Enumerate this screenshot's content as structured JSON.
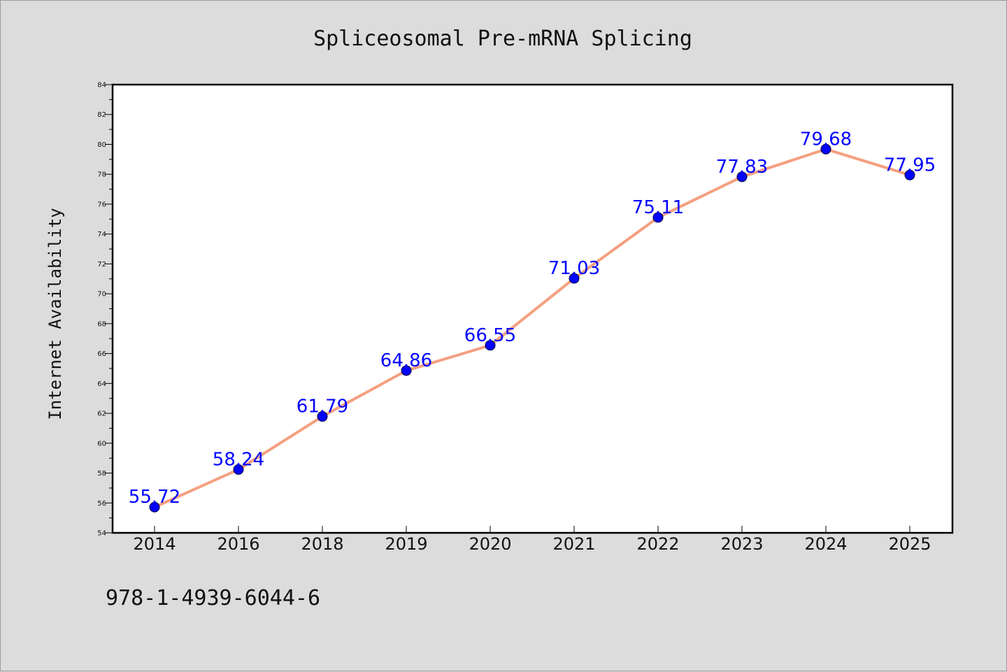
{
  "chart_data": {
    "type": "line",
    "title": "Spliceosomal Pre-mRNA Splicing",
    "xlabel": "",
    "ylabel": "Internet Availability",
    "categories": [
      "2014",
      "2016",
      "2018",
      "2019",
      "2020",
      "2021",
      "2022",
      "2023",
      "2024",
      "2025"
    ],
    "series": [
      {
        "values": [
          55.72,
          58.24,
          61.79,
          64.86,
          66.55,
          71.03,
          75.11,
          77.83,
          79.68,
          77.95
        ],
        "data_labels": [
          "55.72",
          "58.24",
          "61.79",
          "64.86",
          "66.55",
          "71.03",
          "75.11",
          "77.83",
          "79.68",
          "77.95"
        ],
        "line_color": "#f4a080",
        "marker_color": "#0000ff"
      }
    ],
    "ylim": [
      54,
      84
    ],
    "yticks": [
      "54",
      "56",
      "58",
      "60",
      "62",
      "64",
      "66",
      "68",
      "70",
      "72",
      "74",
      "76",
      "78",
      "80",
      "82",
      "84"
    ],
    "grid": false,
    "legend": "none"
  },
  "footer": {
    "isbn": "978-1-4939-6044-6"
  }
}
